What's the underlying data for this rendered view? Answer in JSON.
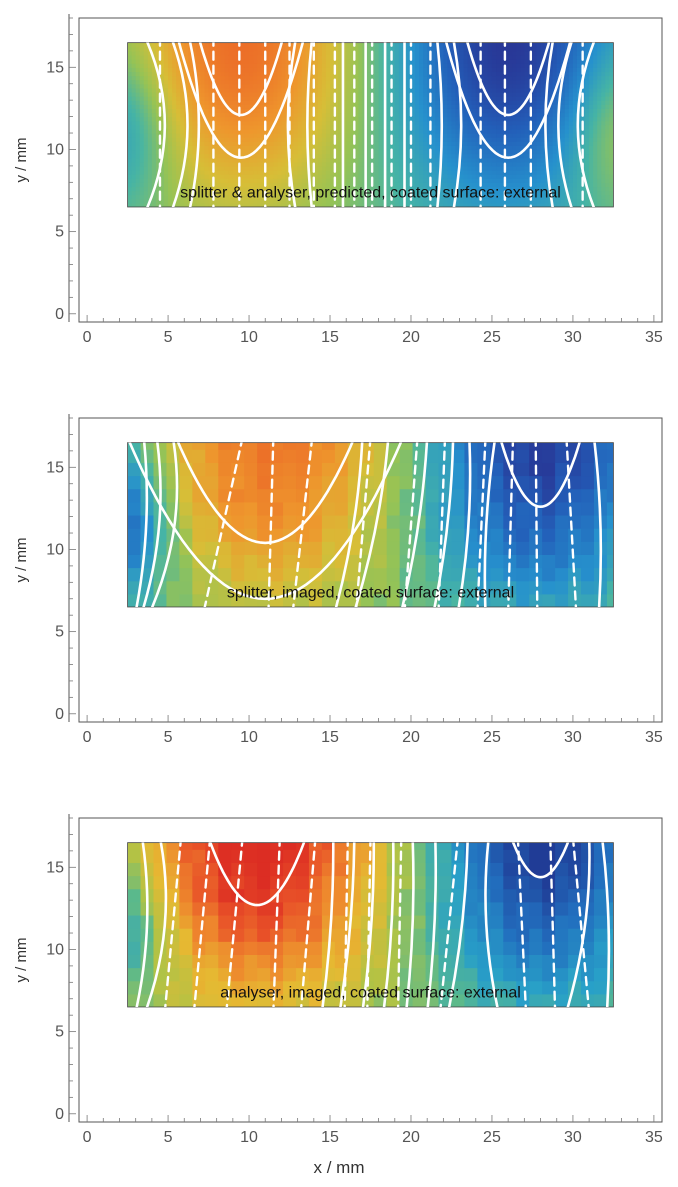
{
  "figure": {
    "x_axis_title": "x / mm"
  },
  "chart_data": [
    {
      "type": "heatmap",
      "title": "",
      "annotation": "splitter & analyser, predicted, coated surface: external",
      "xlabel": "",
      "ylabel": "y / mm",
      "xlim": [
        -0.5,
        35.5
      ],
      "ylim": [
        -0.5,
        18.0
      ],
      "xticks": [
        0,
        5,
        10,
        15,
        20,
        25,
        30,
        35
      ],
      "yticks": [
        0,
        5,
        10,
        15
      ],
      "grid": false,
      "region": {
        "x": [
          2.5,
          32.5
        ],
        "y": [
          6.5,
          16.5
        ]
      },
      "colormap": "blue-green-yellow-orange",
      "cell_size_mm": 0,
      "field": {
        "min": -1.0,
        "max": 1.0,
        "peaks": [
          {
            "x": 9.5,
            "y": 16.5,
            "value": 1.0,
            "spread_x": 7.0,
            "spread_y": 9.5
          },
          {
            "x": 26,
            "y": 16.5,
            "value": -1.0,
            "spread_x": 7.0,
            "spread_y": 9.5
          },
          {
            "x": 2.5,
            "y": 11.5,
            "value": -0.45,
            "spread_x": 3.0,
            "spread_y": 5.0
          },
          {
            "x": 32.5,
            "y": 11.5,
            "value": 0.4,
            "spread_x": 3.0,
            "spread_y": 5.0
          }
        ],
        "tilt": 0.0
      },
      "solid_contours": [
        {
          "type": "u",
          "x": 9.5,
          "ymin": 12.1,
          "dx": 2.6
        },
        {
          "type": "u",
          "x": 9.5,
          "ymin": 9.5,
          "dx": 3.9
        },
        {
          "type": "u",
          "x": 26,
          "ymin": 12.1,
          "dx": 2.6
        },
        {
          "type": "u",
          "x": 26,
          "ymin": 9.5,
          "dx": 3.9
        },
        {
          "type": "arc",
          "side": "left",
          "x": 3.6,
          "ymid": 11.5,
          "depth": 1.2
        },
        {
          "type": "arc",
          "side": "left",
          "x": 5.2,
          "ymid": 11.5,
          "depth": 1.0
        },
        {
          "type": "arc",
          "side": "left",
          "x": 6.3,
          "ymid": 11.5,
          "depth": 0.6
        },
        {
          "type": "arc",
          "side": "right",
          "x": 31.4,
          "ymid": 11.5,
          "depth": 1.1
        },
        {
          "type": "arc",
          "side": "right",
          "x": 30.0,
          "ymid": 11.5,
          "depth": 0.9
        },
        {
          "type": "arc",
          "side": "right",
          "x": 28.8,
          "ymid": 11.5,
          "depth": 0.5
        },
        {
          "type": "arc",
          "side": "right",
          "x": 12.9,
          "ymid": 11.5,
          "depth": 0.5
        },
        {
          "type": "arc",
          "side": "right",
          "x": 13.9,
          "ymid": 11.5,
          "depth": 0.3
        },
        {
          "type": "arc",
          "side": "left",
          "x": 22.6,
          "ymid": 11.5,
          "depth": 0.5
        },
        {
          "type": "arc",
          "side": "left",
          "x": 21.6,
          "ymid": 11.5,
          "depth": 0.3
        },
        {
          "type": "line",
          "x1": 15.8,
          "x2": 15.8
        },
        {
          "type": "line",
          "x1": 17.2,
          "x2": 17.2
        },
        {
          "type": "line",
          "x1": 18.4,
          "x2": 18.4
        },
        {
          "type": "line",
          "x1": 19.6,
          "x2": 19.6
        }
      ],
      "dashed_contours": [
        {
          "x1": 4.5,
          "x2": 4.5
        },
        {
          "x1": 7.8,
          "x2": 7.8
        },
        {
          "x1": 9.4,
          "x2": 9.4
        },
        {
          "x1": 11.0,
          "x2": 11.0
        },
        {
          "x1": 12.5,
          "x2": 12.5
        },
        {
          "x1": 14.0,
          "x2": 14.0
        },
        {
          "x1": 15.3,
          "x2": 15.3
        },
        {
          "x1": 16.5,
          "x2": 16.5
        },
        {
          "x1": 17.6,
          "x2": 17.6
        },
        {
          "x1": 18.8,
          "x2": 18.8
        },
        {
          "x1": 20.0,
          "x2": 20.0
        },
        {
          "x1": 21.2,
          "x2": 21.2
        },
        {
          "x1": 24.3,
          "x2": 24.3
        },
        {
          "x1": 25.8,
          "x2": 25.8
        },
        {
          "x1": 27.4,
          "x2": 27.4
        },
        {
          "x1": 30.6,
          "x2": 30.6
        }
      ]
    },
    {
      "type": "heatmap",
      "title": "",
      "annotation": "splitter, imaged, coated surface: external",
      "xlabel": "",
      "ylabel": "y / mm",
      "xlim": [
        -0.5,
        35.5
      ],
      "ylim": [
        -0.5,
        18.0
      ],
      "xticks": [
        0,
        5,
        10,
        15,
        20,
        25,
        30,
        35
      ],
      "yticks": [
        0,
        5,
        10,
        15
      ],
      "grid": false,
      "region": {
        "x": [
          2.5,
          32.5
        ],
        "y": [
          6.5,
          16.5
        ]
      },
      "colormap": "blue-green-yellow-orange",
      "cell_size_mm": 0.8,
      "field": {
        "min": -1.0,
        "max": 1.0,
        "peaks": [
          {
            "x": 11,
            "y": 16.5,
            "value": 1.0,
            "spread_x": 8.5,
            "spread_y": 10.5
          },
          {
            "x": 28,
            "y": 16.5,
            "value": -1.05,
            "spread_x": 7.5,
            "spread_y": 10.0
          },
          {
            "x": 2.5,
            "y": 12.0,
            "value": -0.7,
            "spread_x": 3.0,
            "spread_y": 5.0
          }
        ],
        "tilt": 0.15
      },
      "solid_contours": [
        {
          "type": "u",
          "x": 11,
          "ymin": 10.4,
          "dx": 5.5
        },
        {
          "type": "u",
          "x": 11,
          "ymin": 7.0,
          "dx": 8.5
        },
        {
          "type": "u",
          "x": 28,
          "ymin": 12.6,
          "dx": 2.5
        },
        {
          "type": "curve",
          "xtop": 3.5,
          "xbot": 3.0,
          "bulge": 0.8
        },
        {
          "type": "curve",
          "xtop": 4.3,
          "xbot": 3.4,
          "bulge": 1.2
        },
        {
          "type": "curve",
          "xtop": 5.3,
          "xbot": 3.9,
          "bulge": 1.6
        },
        {
          "type": "curve",
          "xtop": 17.0,
          "xbot": 15.3,
          "bulge": 0.6
        },
        {
          "type": "curve",
          "xtop": 18.6,
          "xbot": 16.5,
          "bulge": 0.6
        },
        {
          "type": "curve",
          "xtop": 21.0,
          "xbot": 19.4,
          "bulge": 0.5
        },
        {
          "type": "curve",
          "xtop": 22.6,
          "xbot": 21.4,
          "bulge": 0.5
        },
        {
          "type": "curve",
          "xtop": 23.6,
          "xbot": 22.9,
          "bulge": 0.6
        },
        {
          "type": "curve",
          "xtop": 25.2,
          "xbot": 24.6,
          "bulge": -0.5
        },
        {
          "type": "curve",
          "xtop": 31.3,
          "xbot": 31.6,
          "bulge": 0.5
        }
      ],
      "dashed_contours": [
        {
          "x1": 9.6,
          "x2": 7.2
        },
        {
          "x1": 11.5,
          "x2": 11.2
        },
        {
          "x1": 13.9,
          "x2": 12.7
        },
        {
          "x1": 17.5,
          "x2": 16.6
        },
        {
          "x1": 20.4,
          "x2": 19.6
        },
        {
          "x1": 22.1,
          "x2": 21.7
        },
        {
          "x1": 24.6,
          "x2": 24.1
        },
        {
          "x1": 26.3,
          "x2": 26.0
        },
        {
          "x1": 27.7,
          "x2": 27.8
        },
        {
          "x1": 29.6,
          "x2": 30.2
        }
      ]
    },
    {
      "type": "heatmap",
      "title": "",
      "annotation": "analyser, imaged, coated surface: external",
      "xlabel": "x / mm",
      "ylabel": "y / mm",
      "xlim": [
        -0.5,
        35.5
      ],
      "ylim": [
        -0.5,
        18.0
      ],
      "xticks": [
        0,
        5,
        10,
        15,
        20,
        25,
        30,
        35
      ],
      "yticks": [
        0,
        5,
        10,
        15
      ],
      "grid": false,
      "region": {
        "x": [
          2.5,
          32.5
        ],
        "y": [
          6.5,
          16.5
        ]
      },
      "colormap": "blue-green-yellow-orange-red",
      "cell_size_mm": 0.8,
      "field": {
        "min": -1.0,
        "max": 1.0,
        "peaks": [
          {
            "x": 10.5,
            "y": 16.5,
            "value": 1.05,
            "spread_x": 8.0,
            "spread_y": 10.0
          },
          {
            "x": 28,
            "y": 16.5,
            "value": -1.0,
            "spread_x": 6.5,
            "spread_y": 9.0
          },
          {
            "x": 2.5,
            "y": 11.5,
            "value": -0.45,
            "spread_x": 3.0,
            "spread_y": 5.0
          }
        ],
        "tilt": 0.0
      },
      "solid_contours": [
        {
          "type": "u",
          "x": 10.5,
          "ymin": 12.7,
          "dx": 3.0
        },
        {
          "type": "u",
          "x": 28,
          "ymin": 14.4,
          "dx": 1.8
        },
        {
          "type": "curve",
          "xtop": 3.4,
          "xbot": 3.0,
          "bulge": 1.0
        },
        {
          "type": "curve",
          "xtop": 4.5,
          "xbot": 3.6,
          "bulge": 1.5
        },
        {
          "type": "curve",
          "xtop": 15.2,
          "xbot": 14.5,
          "bulge": 0.4
        },
        {
          "type": "curve",
          "xtop": 16.5,
          "xbot": 15.6,
          "bulge": 0.4
        },
        {
          "type": "curve",
          "xtop": 17.7,
          "xbot": 17.0,
          "bulge": 0.4
        },
        {
          "type": "curve",
          "xtop": 18.9,
          "xbot": 18.3,
          "bulge": 0.4
        },
        {
          "type": "curve",
          "xtop": 20.1,
          "xbot": 19.7,
          "bulge": 0.4
        },
        {
          "type": "curve",
          "xtop": 21.5,
          "xbot": 21.0,
          "bulge": 0.4
        },
        {
          "type": "curve",
          "xtop": 23.5,
          "xbot": 22.3,
          "bulge": 0.5
        },
        {
          "type": "curve",
          "xtop": 24.8,
          "xbot": 25.4,
          "bulge": -0.9
        },
        {
          "type": "curve",
          "xtop": 31.0,
          "xbot": 29.6,
          "bulge": 0.9
        },
        {
          "type": "curve",
          "xtop": 31.8,
          "xbot": 32.1,
          "bulge": 0.5
        }
      ],
      "dashed_contours": [
        {
          "x1": 5.8,
          "x2": 4.8
        },
        {
          "x1": 7.6,
          "x2": 6.6
        },
        {
          "x1": 9.6,
          "x2": 8.6
        },
        {
          "x1": 11.9,
          "x2": 11.5
        },
        {
          "x1": 14.1,
          "x2": 13.2
        },
        {
          "x1": 16.1,
          "x2": 15.9
        },
        {
          "x1": 17.5,
          "x2": 17.3
        },
        {
          "x1": 19.4,
          "x2": 19.2
        },
        {
          "x1": 22.9,
          "x2": 21.8
        },
        {
          "x1": 26.6,
          "x2": 27.1
        },
        {
          "x1": 28.6,
          "x2": 28.9
        },
        {
          "x1": 30.0,
          "x2": 31.0
        }
      ]
    }
  ]
}
